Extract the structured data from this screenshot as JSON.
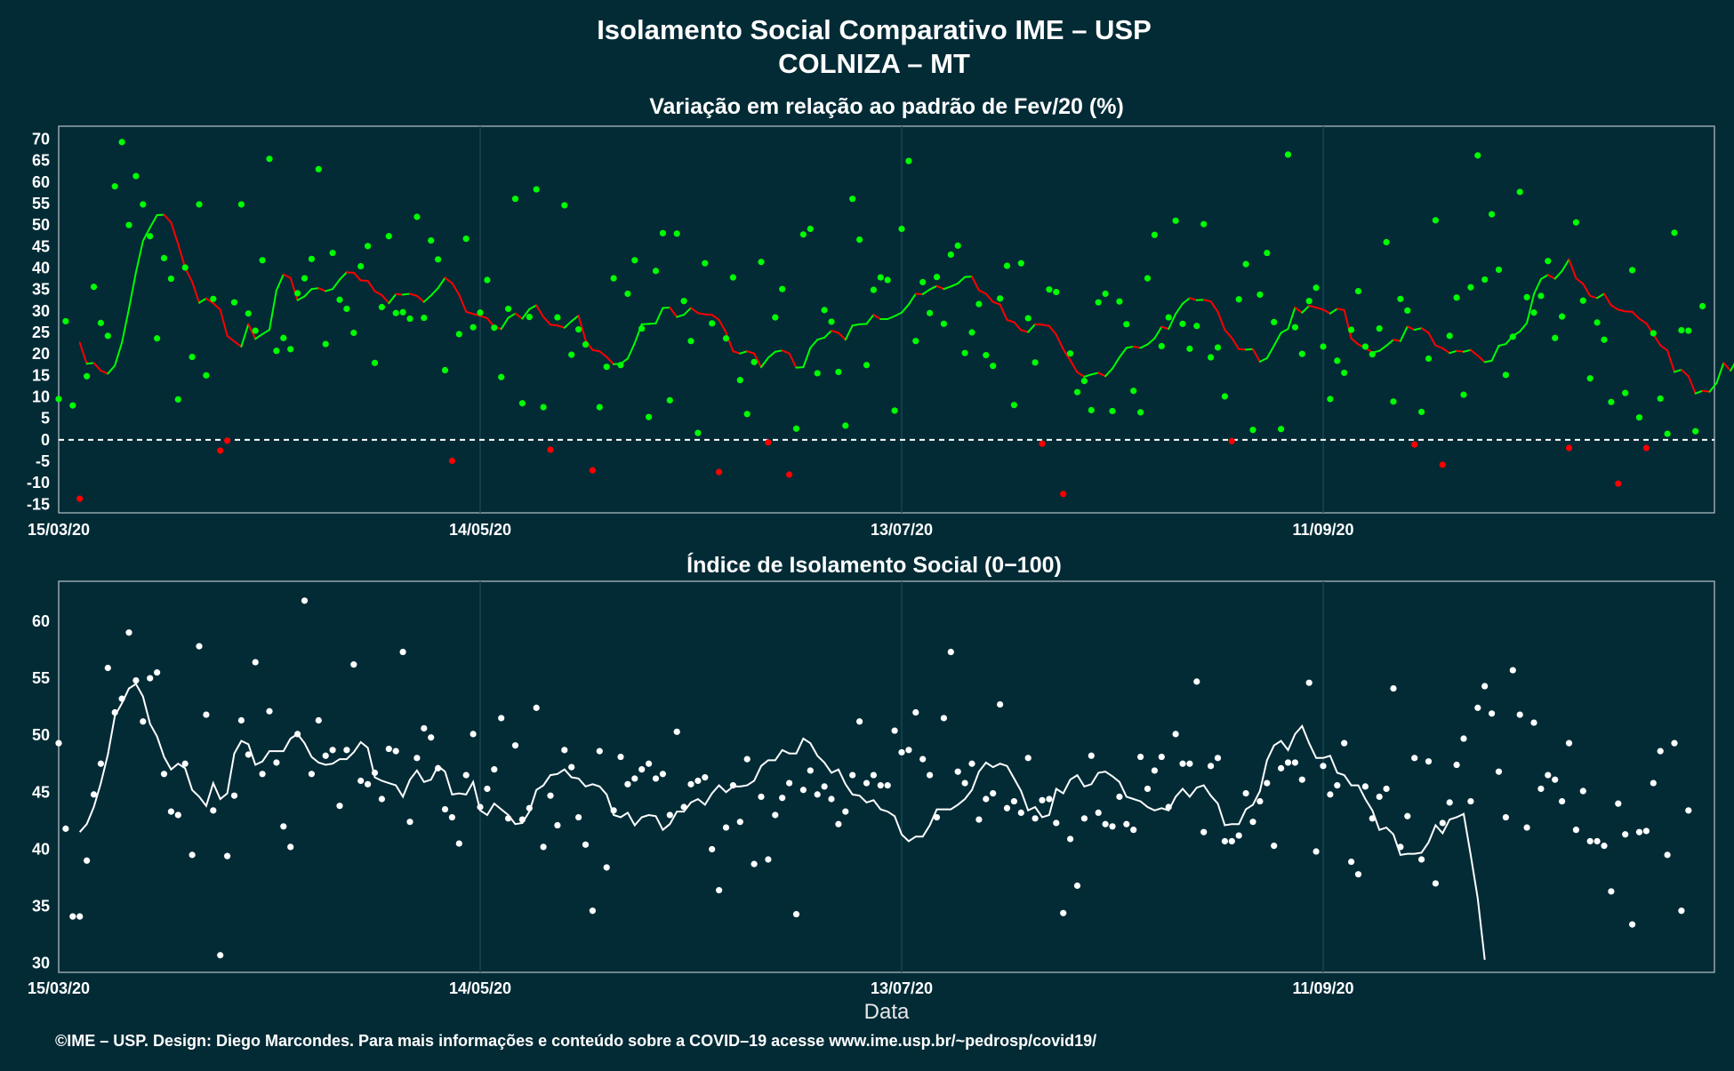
{
  "figure": {
    "title": "Isolamento Social Comparativo IME – USP",
    "subtitle": "COLNIZA – MT",
    "xlabel": "Data",
    "footer": "©IME – USP. Design: Diego Marcondes. Para mais informações e conteúdo sobre a COVID–19 acesse www.ime.usp.br/~pedrosp/covid19/",
    "colors": {
      "background": "#022b36",
      "text": "#ffffff",
      "positive": "#00ff00",
      "negative": "#ff0000",
      "points_bottom": "#ffffff"
    }
  },
  "chart_data": [
    {
      "type": "scatter",
      "title": "Variação em relação ao padrão de Fev/20 (%)",
      "x_start": "2020-03-15",
      "x_ticks": [
        "15/03/20",
        "14/05/20",
        "13/07/20",
        "11/09/20"
      ],
      "ylim": [
        -17,
        73
      ],
      "y_ticks": [
        -15,
        -10,
        -5,
        0,
        5,
        10,
        15,
        20,
        25,
        30,
        35,
        40,
        45,
        50,
        55,
        60,
        65,
        70
      ],
      "reference_line": 0,
      "grid": true,
      "series": [
        {
          "kind": "points",
          "values": [
            9.5,
            27.6,
            8.0,
            -13.7,
            14.8,
            35.6,
            27.2,
            24.2,
            59.0,
            69.3,
            50.0,
            61.4,
            54.8,
            47.4,
            23.6,
            42.3,
            37.5,
            9.4,
            40.1,
            19.3,
            54.8,
            15.0,
            32.8,
            -2.5,
            -0.2,
            32.0,
            54.8,
            29.4,
            25.4,
            41.8,
            65.4,
            20.7,
            23.7,
            21.1,
            34.1,
            37.6,
            42.1,
            63.0,
            22.3,
            43.5,
            32.6,
            30.5,
            24.9,
            40.4,
            45.1,
            17.9,
            30.9,
            47.4,
            29.5,
            29.7,
            28.2,
            51.9,
            28.4,
            46.4,
            42.0,
            16.2,
            -4.9,
            24.6,
            46.8,
            26.2,
            29.6,
            37.2,
            26.1,
            14.6,
            30.5,
            56.1,
            8.5,
            28.6,
            58.3,
            7.6,
            -2.3,
            28.5,
            54.6,
            19.8,
            25.7,
            22.2,
            -7.1,
            7.6,
            17.0,
            37.6,
            17.4,
            34.0,
            41.8,
            25.9,
            5.3,
            39.3,
            48.1,
            9.2,
            48.0,
            32.3,
            23.0,
            1.6,
            41.1,
            27.1,
            -7.5,
            23.6,
            37.8,
            13.9,
            6.0,
            18.1,
            41.4,
            -0.6,
            28.5,
            35.1,
            -8.1,
            2.6,
            47.8,
            49.1,
            15.5,
            30.2,
            27.5,
            15.8,
            3.3,
            56.1,
            46.6,
            17.4,
            34.9,
            37.8,
            37.2,
            6.8,
            49.1,
            64.9,
            23.0,
            36.7,
            29.5,
            37.9,
            27.0,
            43.1,
            45.2,
            20.2,
            25.0,
            31.6,
            19.7,
            17.2,
            32.9,
            40.5,
            8.1,
            41.1,
            28.3,
            18.0,
            -0.9,
            35.0,
            34.4,
            -12.6,
            20.1,
            11.1,
            13.7,
            6.9,
            32.0,
            34.0,
            6.7,
            32.2,
            26.9,
            11.4,
            6.4,
            37.6,
            47.7,
            21.8,
            28.5,
            51.0,
            27.0,
            21.2,
            26.5,
            50.2,
            19.2,
            21.5,
            10.1,
            -0.3,
            32.7,
            40.9,
            2.3,
            33.8,
            43.5,
            27.4,
            2.5,
            66.4,
            26.2,
            20.0,
            32.3,
            35.4,
            21.7,
            9.5,
            18.4,
            15.6,
            25.6,
            34.6,
            21.7,
            19.9,
            25.9,
            46.0,
            8.9,
            32.8,
            30.1,
            -1.1,
            6.5,
            18.9,
            51.1,
            -5.8,
            24.2,
            33.1,
            10.5,
            35.5,
            66.2,
            37.3,
            52.5,
            39.6,
            15.1,
            24.0,
            57.7,
            33.2,
            29.6,
            33.5,
            41.6,
            23.7,
            28.7,
            -1.9,
            50.6,
            32.4,
            14.3,
            27.3,
            23.3,
            8.8,
            -10.2,
            10.9,
            39.5,
            5.2,
            -1.9,
            24.8,
            9.6,
            1.4,
            48.2,
            25.5,
            25.4,
            2.0,
            31.1
          ]
        },
        {
          "kind": "moving_average",
          "values": [
            22.6,
            17.7,
            17.9,
            16.1,
            15.4,
            17.3,
            22.6,
            30.5,
            39.0,
            46.3,
            49.4,
            52.3,
            52.4,
            50.6,
            45.6,
            40.0,
            36.8,
            31.9,
            32.9,
            31.8,
            30.3,
            24.2,
            22.9,
            21.7,
            26.9,
            23.5,
            24.6,
            25.6,
            34.8,
            38.5,
            37.7,
            32.5,
            33.4,
            35.1,
            35.3,
            34.6,
            35.1,
            37.3,
            39.0,
            38.9,
            37.1,
            37.0,
            34.6,
            33.7,
            31.8,
            33.9,
            33.8,
            34.0,
            33.5,
            32.1,
            33.6,
            35.3,
            37.7,
            36.5,
            33.8,
            29.8,
            29.3,
            28.9,
            28.3,
            26.3,
            25.8,
            28.4,
            29.4,
            28.2,
            30.4,
            31.3,
            28.6,
            26.8,
            26.6,
            26.1,
            27.6,
            28.9,
            23.2,
            20.9,
            20.6,
            19.3,
            17.6,
            17.7,
            18.9,
            22.5,
            26.9,
            27.0,
            27.1,
            30.7,
            30.8,
            28.6,
            29.1,
            30.7,
            29.5,
            29.2,
            29.1,
            27.9,
            25.0,
            20.6,
            20.1,
            20.6,
            20.1,
            16.9,
            19.1,
            20.5,
            20.8,
            20.1,
            16.8,
            16.9,
            21.4,
            23.3,
            23.8,
            25.4,
            24.9,
            23.3,
            26.6,
            26.9,
            27.0,
            29.1,
            28.1,
            28.1,
            28.8,
            29.6,
            31.5,
            34.0,
            33.9,
            35.0,
            35.8,
            35.1,
            35.7,
            36.4,
            37.9,
            38.0,
            34.8,
            34.0,
            32.1,
            31.5,
            27.9,
            27.4,
            25.5,
            25.1,
            26.9,
            26.8,
            26.5,
            24.5,
            21.1,
            18.5,
            15.7,
            14.7,
            15.2,
            15.6,
            14.8,
            16.6,
            19.2,
            21.4,
            21.7,
            21.4,
            22.2,
            23.6,
            26.3,
            25.8,
            29.3,
            31.7,
            33.0,
            32.5,
            32.6,
            32.2,
            29.8,
            25.6,
            23.7,
            21.1,
            21.0,
            21.1,
            18.2,
            19.0,
            21.9,
            24.9,
            25.8,
            30.8,
            29.6,
            31.2,
            30.8,
            30.3,
            29.4,
            30.5,
            30.2,
            23.6,
            22.2,
            21.4,
            20.3,
            20.7,
            21.9,
            23.3,
            23.0,
            26.4,
            25.6,
            26.0,
            24.9,
            22.0,
            21.3,
            20.2,
            20.7,
            20.5,
            20.9,
            19.6,
            18.1,
            18.4,
            21.9,
            22.3,
            24.2,
            25.2,
            27.2,
            33.9,
            37.4,
            38.4,
            37.5,
            39.3,
            42.0,
            37.6,
            36.3,
            33.5,
            33.0,
            34.0,
            31.3,
            30.3,
            29.9,
            29.8,
            28.2,
            27.1,
            24.6,
            22.0,
            20.8,
            15.8,
            16.3,
            14.8,
            10.8,
            11.4,
            11.2,
            13.2,
            17.9,
            16.1,
            19.0,
            19.6,
            20.3
          ]
        }
      ]
    },
    {
      "type": "scatter",
      "title": "Índice de Isolamento Social (0−100)",
      "x_start": "2020-03-15",
      "x_ticks": [
        "15/03/20",
        "14/05/20",
        "13/07/20",
        "11/09/20"
      ],
      "ylim": [
        29.2,
        63.5
      ],
      "y_ticks": [
        30,
        35,
        40,
        45,
        50,
        55,
        60
      ],
      "grid": true,
      "series": [
        {
          "kind": "points",
          "values": [
            49.3,
            41.8,
            34.1,
            34.1,
            39.0,
            44.8,
            47.5,
            55.9,
            52.0,
            53.2,
            59.0,
            54.8,
            51.2,
            55.0,
            55.5,
            46.6,
            43.3,
            43.0,
            47.5,
            39.5,
            57.8,
            51.8,
            43.4,
            30.7,
            39.4,
            44.7,
            51.3,
            48.3,
            56.4,
            46.6,
            52.1,
            47.6,
            42.0,
            40.2,
            50.1,
            61.8,
            46.6,
            51.3,
            48.2,
            48.7,
            43.8,
            48.7,
            56.2,
            46.0,
            45.7,
            46.7,
            44.4,
            48.8,
            48.6,
            57.3,
            42.4,
            48.0,
            50.6,
            49.8,
            47.1,
            43.5,
            42.8,
            40.5,
            46.5,
            50.1,
            43.7,
            45.3,
            47.0,
            51.5,
            42.7,
            49.1,
            42.6,
            43.6,
            52.4,
            40.2,
            44.7,
            42.1,
            48.7,
            47.2,
            42.8,
            40.4,
            34.6,
            48.6,
            38.4,
            43.4,
            48.1,
            45.7,
            46.2,
            47.0,
            47.5,
            46.2,
            46.6,
            43.0,
            50.3,
            43.7,
            45.7,
            46.0,
            46.3,
            40.0,
            36.4,
            41.9,
            45.6,
            42.4,
            47.9,
            38.7,
            44.6,
            39.1,
            43.0,
            44.5,
            45.8,
            34.3,
            45.2,
            46.9,
            44.8,
            45.5,
            44.4,
            42.2,
            43.3,
            46.5,
            51.2,
            45.8,
            46.5,
            45.6,
            45.6,
            50.4,
            48.5,
            48.7,
            52.0,
            47.9,
            46.5,
            42.8,
            51.5,
            57.3,
            46.8,
            45.8,
            47.5,
            42.6,
            44.4,
            44.9,
            52.7,
            43.6,
            44.2,
            43.2,
            48.0,
            42.7,
            44.3,
            44.4,
            42.3,
            34.4,
            40.9,
            36.8,
            42.7,
            48.2,
            43.2,
            42.2,
            42.0,
            44.6,
            42.2,
            41.7,
            48.1,
            45.3,
            46.9,
            48.1,
            43.7,
            50.1,
            47.5,
            47.5,
            54.7,
            41.5,
            47.3,
            48.0,
            40.7,
            40.7,
            41.2,
            44.9,
            42.4,
            44.2,
            45.8,
            40.3,
            47.1,
            47.6,
            47.6,
            46.1,
            54.6,
            39.8,
            47.3,
            44.8,
            45.6,
            49.3,
            38.9,
            37.8,
            45.5,
            42.7,
            44.6,
            45.3,
            54.1,
            40.2,
            42.9,
            48.0,
            39.1,
            47.7,
            37.0,
            42.3,
            44.1,
            47.4,
            49.7,
            44.2,
            52.4,
            54.3,
            51.9,
            46.8,
            42.8,
            55.7,
            51.8,
            41.9,
            51.1,
            45.3,
            46.5,
            46.1,
            44.2,
            49.3,
            41.7,
            45.1,
            40.7,
            40.7,
            40.3,
            36.3,
            44.0,
            41.3,
            33.4,
            41.5,
            41.6,
            45.8,
            48.6,
            39.5,
            49.3,
            34.6,
            43.4
          ]
        },
        {
          "kind": "moving_average",
          "values": [
            41.5,
            42.2,
            43.7,
            45.8,
            48.3,
            51.7,
            52.8,
            54.1,
            54.5,
            53.4,
            51.0,
            49.9,
            48.1,
            47.0,
            47.5,
            47.1,
            45.2,
            44.6,
            43.8,
            45.8,
            44.4,
            44.9,
            48.4,
            49.5,
            49.2,
            47.4,
            47.7,
            48.6,
            48.6,
            48.6,
            49.7,
            50.1,
            49.3,
            48.1,
            47.6,
            47.4,
            47.5,
            47.9,
            47.9,
            48.5,
            49.4,
            48.9,
            46.3,
            46.0,
            45.8,
            45.6,
            44.6,
            46.1,
            46.9,
            45.9,
            46.1,
            47.3,
            46.8,
            44.8,
            44.9,
            44.8,
            45.9,
            43.4,
            43.0,
            44.0,
            43.5,
            43.0,
            42.2,
            42.3,
            43.3,
            45.2,
            45.6,
            46.5,
            46.6,
            47.0,
            46.3,
            46.2,
            45.5,
            45.7,
            45.5,
            44.8,
            43.0,
            42.8,
            43.2,
            42.1,
            42.8,
            43.0,
            42.9,
            41.7,
            42.2,
            43.3,
            43.3,
            44.1,
            44.4,
            43.9,
            44.9,
            45.6,
            45.0,
            45.5,
            45.5,
            45.6,
            46.0,
            47.3,
            47.8,
            47.8,
            48.7,
            48.4,
            48.4,
            49.7,
            49.3,
            48.2,
            47.6,
            46.7,
            47.0,
            45.7,
            44.8,
            44.7,
            44.1,
            44.3,
            43.5,
            43.3,
            42.9,
            41.3,
            40.7,
            41.1,
            41.1,
            42.1,
            43.5,
            43.5,
            43.5,
            43.9,
            44.4,
            45.2,
            46.8,
            47.6,
            47.2,
            47.5,
            47.3,
            46.2,
            45.1,
            43.4,
            43.7,
            42.8,
            43.0,
            45.3,
            44.9,
            46.1,
            46.5,
            45.5,
            45.7,
            46.7,
            46.8,
            46.4,
            45.9,
            44.6,
            44.4,
            44.2,
            43.7,
            43.4,
            43.6,
            43.4,
            44.6,
            45.3,
            44.6,
            45.4,
            45.6,
            44.7,
            44.0,
            42.1,
            42.2,
            42.2,
            43.5,
            43.9,
            45.1,
            47.8,
            49.1,
            49.5,
            48.7,
            50.1,
            50.8,
            49.3,
            48.0,
            48.0,
            48.2,
            46.7,
            46.5,
            45.6,
            45.6,
            44.4,
            43.4,
            41.7,
            41.9,
            41.3,
            39.5,
            39.6,
            39.6,
            39.7,
            40.6,
            42.1,
            41.4,
            42.6,
            42.8,
            43.1,
            39.5,
            35.7,
            30.3
          ]
        }
      ]
    }
  ]
}
